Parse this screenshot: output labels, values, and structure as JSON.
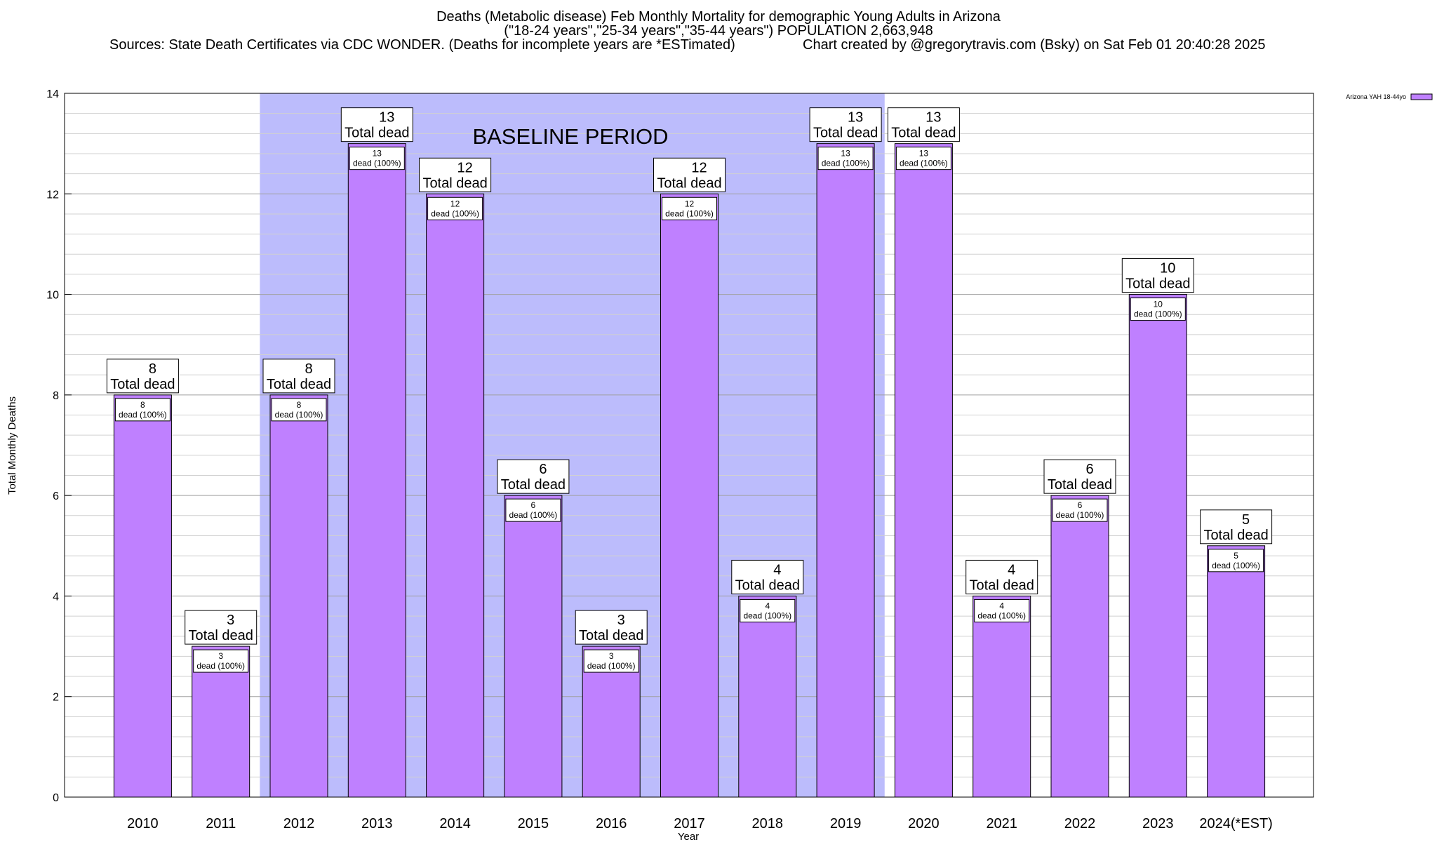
{
  "title": {
    "line1": "Deaths (Metabolic disease) Feb Monthly Mortality for demographic Young Adults in Arizona",
    "line2": "(\"18-24 years\",\"25-34 years\",\"35-44 years\") POPULATION 2,663,948",
    "sources": "Sources: State Death Certificates via CDC WONDER. (Deaths for incomplete years are *ESTimated)",
    "credit": "Chart created by @gregorytravis.com (Bsky) on Sat Feb 01 20:40:28 2025"
  },
  "chart_data": {
    "type": "bar",
    "xlabel": "Year",
    "ylabel": "Total Monthly Deaths",
    "ylim": [
      0,
      14
    ],
    "yticks": [
      0,
      2,
      4,
      6,
      8,
      10,
      12,
      14
    ],
    "minor_grid_step": 0.4,
    "grid": true,
    "legend_position": "top-right",
    "categories": [
      "2010",
      "2011",
      "2012",
      "2013",
      "2014",
      "2015",
      "2016",
      "2017",
      "2018",
      "2019",
      "2020",
      "2021",
      "2022",
      "2023",
      "2024(*EST)"
    ],
    "series": [
      {
        "name": "Arizona YAH 18-44yo",
        "color": "#bf80ff",
        "values": [
          8,
          3,
          8,
          13,
          12,
          6,
          3,
          12,
          4,
          13,
          13,
          4,
          6,
          10,
          5
        ]
      }
    ],
    "total_label_suffix": "Total dead",
    "inner_label_suffix": "dead (100%)",
    "baseline": {
      "label": "BASELINE PERIOD",
      "from": "2012",
      "to": "2019",
      "color": "#bcbcfc"
    }
  },
  "colors": {
    "bar_fill": "#bf80ff",
    "baseline_fill": "#bcbcfc",
    "grid_major": "#a0a0a0",
    "grid_minor": "#d0d0d0"
  }
}
